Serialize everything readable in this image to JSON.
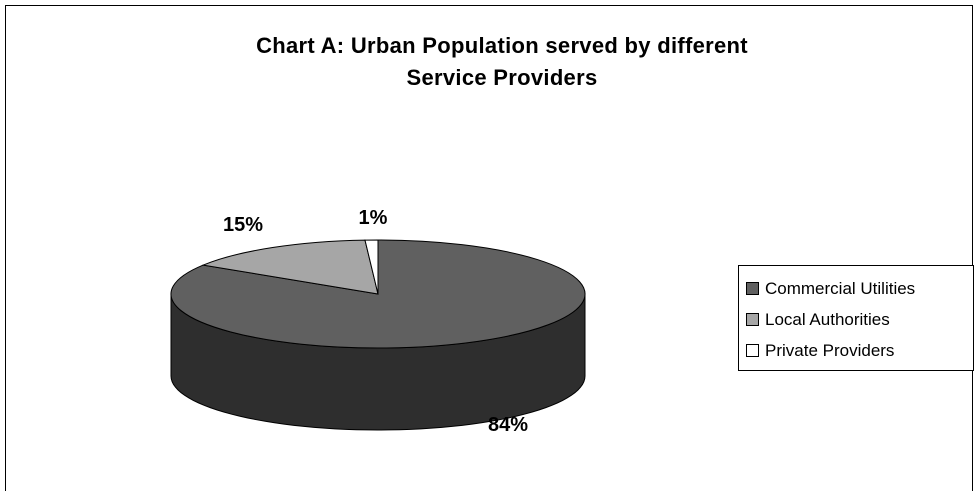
{
  "chart_data": {
    "type": "pie",
    "title_lines": [
      "Chart A: Urban Population served by different",
      "Service Providers"
    ],
    "categories": [
      "Commercial Utilities",
      "Local Authorities",
      "Private Providers"
    ],
    "values": [
      84,
      15,
      1
    ],
    "data_labels": [
      "84%",
      "15%",
      "1%"
    ],
    "colors": {
      "Commercial Utilities": {
        "top": "#606060",
        "side": "#2e2e2e"
      },
      "Local Authorities": {
        "top": "#a6a6a6",
        "side": "#6e6e6e"
      },
      "Private Providers": {
        "top": "#ffffff",
        "side": "#d9d9d9"
      }
    },
    "legend_position": "right",
    "style": "3d"
  }
}
